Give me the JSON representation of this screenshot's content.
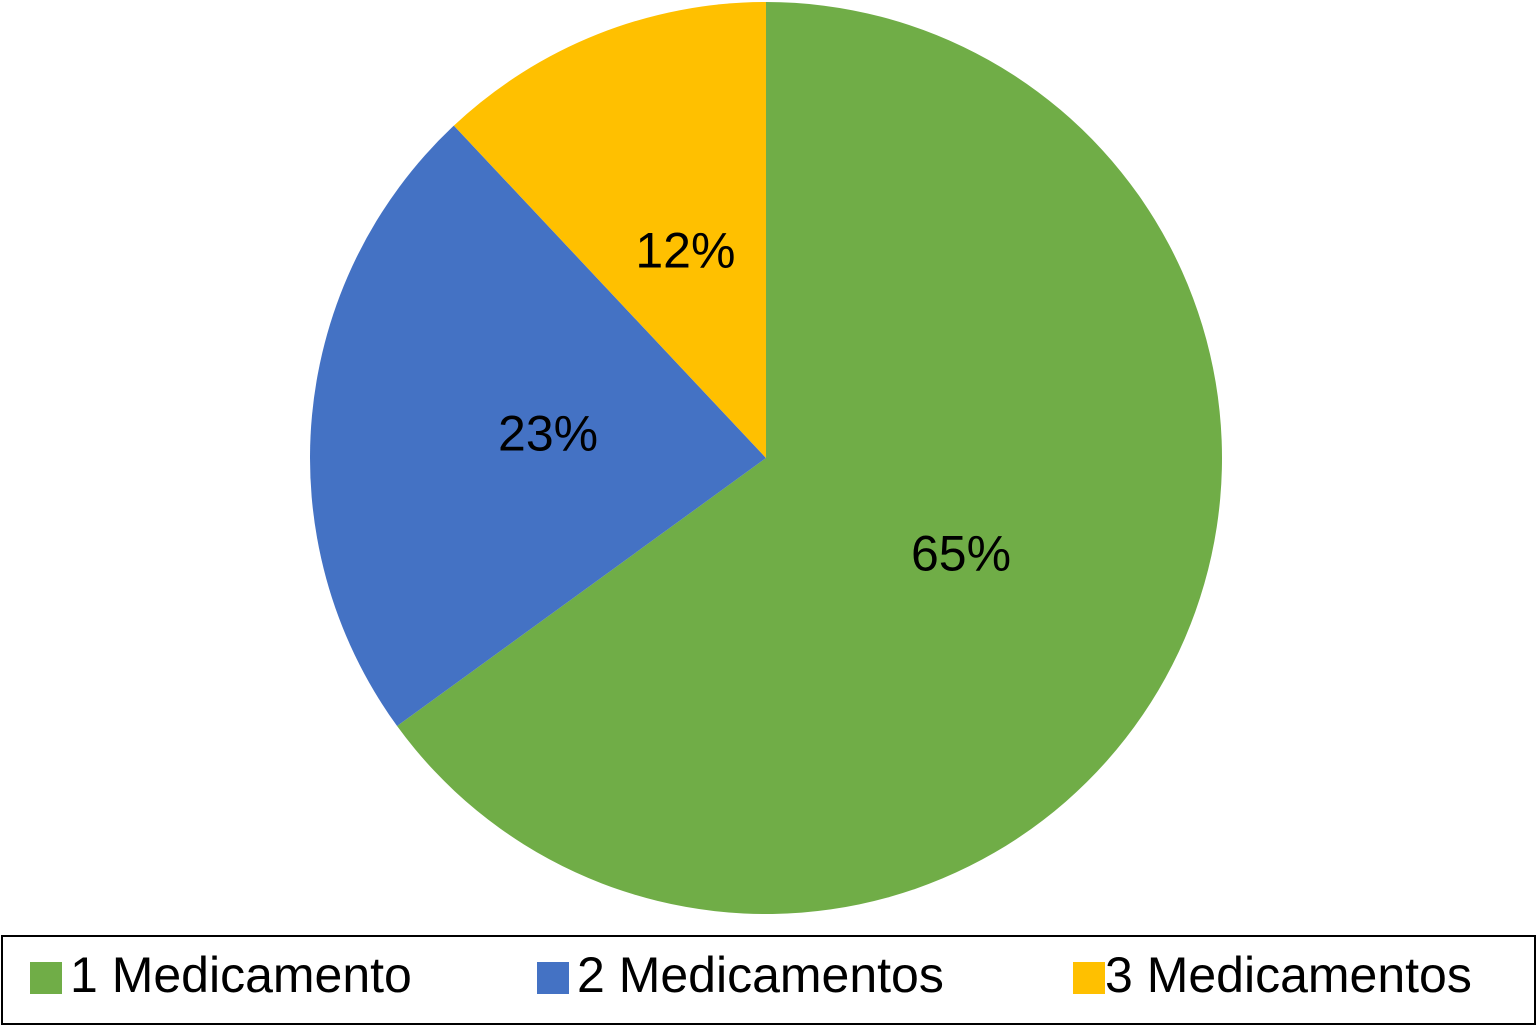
{
  "chart_data": {
    "type": "pie",
    "categories": [
      "1 Medicamento",
      "2 Medicamentos",
      "3 Medicamentos"
    ],
    "values": [
      65,
      23,
      12
    ],
    "value_labels": [
      "65%",
      "23%",
      "12%"
    ],
    "colors": [
      "#70ad47",
      "#4472c4",
      "#ffc000"
    ],
    "legend": "bottom"
  }
}
